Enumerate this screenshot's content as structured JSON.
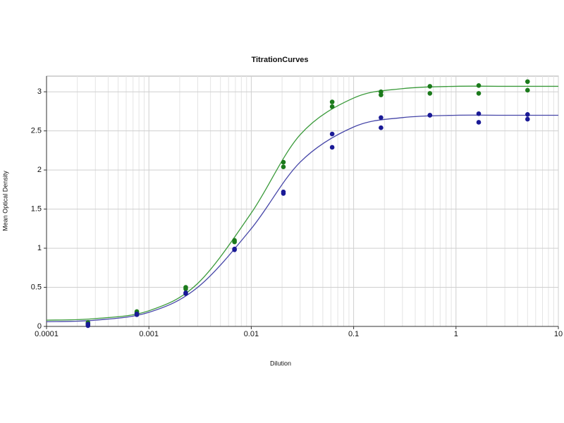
{
  "chart_data": {
    "type": "scatter",
    "title": "TitrationCurves",
    "x_label": "Dilution",
    "y_label": "Mean Optical Density",
    "x_scale": "log",
    "grid": true,
    "minor_grid": true,
    "xlim": [
      0.0001,
      10
    ],
    "xticks": [
      0.0001,
      0.001,
      0.01,
      0.1,
      1,
      10
    ],
    "ylim": [
      0,
      3.2
    ],
    "yticks": [
      0,
      0.5,
      1,
      1.5,
      2,
      2.5,
      3
    ],
    "series": [
      {
        "style": "points",
        "color": "#1b7a1b",
        "x": [
          5,
          5,
          1.667,
          1.667,
          0.556,
          0.556,
          0.185,
          0.185,
          0.0617,
          0.0617,
          0.0206,
          0.0206,
          0.00686,
          0.00686,
          0.00229,
          0.00229,
          0.000762,
          0.000762,
          0.000254,
          0.000254
        ],
        "values": [
          3.13,
          3.02,
          3.08,
          2.98,
          3.07,
          2.98,
          3.0,
          2.96,
          2.87,
          2.81,
          2.1,
          2.04,
          1.1,
          1.08,
          0.5,
          0.48,
          0.19,
          0.17,
          0.05,
          0.03
        ]
      },
      {
        "style": "points",
        "color": "#1a1a96",
        "x": [
          5,
          5,
          1.667,
          1.667,
          0.556,
          0.556,
          0.185,
          0.185,
          0.0617,
          0.0617,
          0.0206,
          0.0206,
          0.00686,
          0.00686,
          0.00229,
          0.00229,
          0.000762,
          0.000762,
          0.000254,
          0.000254
        ],
        "values": [
          2.71,
          2.65,
          2.72,
          2.61,
          2.7,
          2.7,
          2.67,
          2.54,
          2.46,
          2.29,
          1.72,
          1.7,
          0.99,
          0.98,
          0.43,
          0.42,
          0.16,
          0.15,
          0.03,
          0.01
        ]
      },
      {
        "style": "line",
        "color": "#3a9a3a",
        "x": [
          0.0001,
          0.0003,
          0.001,
          0.003,
          0.01,
          0.03,
          0.1,
          0.3,
          1,
          3,
          10
        ],
        "values": [
          0.08,
          0.1,
          0.2,
          0.55,
          1.45,
          2.45,
          2.92,
          3.04,
          3.07,
          3.07,
          3.07
        ]
      },
      {
        "style": "line",
        "color": "#4646a8",
        "x": [
          0.0001,
          0.0003,
          0.001,
          0.003,
          0.01,
          0.03,
          0.1,
          0.3,
          1,
          3,
          10
        ],
        "values": [
          0.06,
          0.08,
          0.18,
          0.5,
          1.25,
          2.1,
          2.55,
          2.67,
          2.7,
          2.7,
          2.7
        ]
      }
    ]
  }
}
